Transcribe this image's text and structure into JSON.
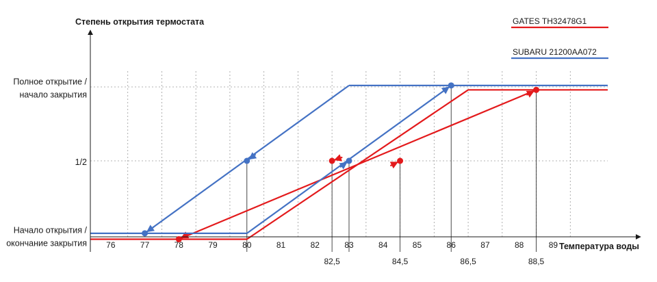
{
  "chart_data": {
    "type": "line",
    "ylabel": "Степень открытия термостата",
    "xlabel": "Температура воды",
    "x_ticks": [
      "76",
      "77",
      "78",
      "79",
      "80",
      "81",
      "82",
      "83",
      "84",
      "85",
      "86",
      "87",
      "88",
      "89"
    ],
    "xlim": [
      75.4,
      90.6
    ],
    "y_levels": [
      {
        "value": 0,
        "lines": [
          "Начало открытия /",
          "окончание закрытия"
        ]
      },
      {
        "value": 0.5,
        "lines": [
          "1/2"
        ]
      },
      {
        "value": 1,
        "lines": [
          "Полное открытие /",
          "начало закрытия"
        ]
      }
    ],
    "grid": true,
    "legend_position": "top-right",
    "marker_labels": [
      "82,5",
      "84,5",
      "86,5",
      "88,5"
    ],
    "series": [
      {
        "name": "GATES TH32478G1",
        "color": "#e31a1c",
        "baseline": [
          [
            75.4,
            -0.03
          ],
          [
            80,
            -0.03
          ]
        ],
        "plateau": [
          [
            86.5,
            0.98
          ],
          [
            90.6,
            0.98
          ]
        ],
        "opening": [
          [
            80,
            -0.03
          ],
          [
            86.5,
            0.98
          ]
        ],
        "closing": [
          [
            88.5,
            0.98
          ],
          [
            78,
            -0.03
          ]
        ],
        "points": [
          [
            84.5,
            0.5
          ],
          [
            88.5,
            0.98
          ],
          [
            82.5,
            0.5
          ],
          [
            78,
            -0.03
          ]
        ],
        "arrows": [
          {
            "from": [
              80,
              -0.03
            ],
            "to": [
              84.5,
              0.5
            ]
          },
          {
            "from": [
              84.5,
              0.5
            ],
            "to": [
              88.5,
              0.98
            ]
          },
          {
            "from": [
              88.5,
              0.98
            ],
            "to": [
              82.5,
              0.5
            ]
          },
          {
            "from": [
              82.5,
              0.5
            ],
            "to": [
              78,
              -0.03
            ]
          }
        ]
      },
      {
        "name": "SUBARU 21200AA072",
        "color": "#4472c4",
        "baseline": [
          [
            75.4,
            0.01
          ],
          [
            80,
            0.01
          ]
        ],
        "plateau": [
          [
            83,
            1.01
          ],
          [
            90.6,
            1.01
          ]
        ],
        "opening": [
          [
            80,
            0.01
          ],
          [
            86,
            1.01
          ]
        ],
        "closing": [
          [
            83,
            1.01
          ],
          [
            77,
            0.01
          ]
        ],
        "points": [
          [
            83,
            0.5
          ],
          [
            86,
            1.01
          ],
          [
            80,
            0.5
          ],
          [
            77,
            0.01
          ]
        ],
        "arrows": [
          {
            "from": [
              80,
              0.01
            ],
            "to": [
              83,
              0.5
            ]
          },
          {
            "from": [
              83,
              0.5
            ],
            "to": [
              86,
              1.01
            ]
          },
          {
            "from": [
              83,
              1.01
            ],
            "to": [
              80,
              0.5
            ]
          },
          {
            "from": [
              80,
              0.5
            ],
            "to": [
              77,
              0.01
            ]
          }
        ]
      }
    ],
    "drop_lines": [
      {
        "x": 80,
        "y": 0.5
      },
      {
        "x": 82.5,
        "y": 0.5
      },
      {
        "x": 83,
        "y": 0.5
      },
      {
        "x": 84.5,
        "y": 0.5
      },
      {
        "x": 86,
        "y": 1.01
      },
      {
        "x": 88.5,
        "y": 0.98
      }
    ]
  }
}
